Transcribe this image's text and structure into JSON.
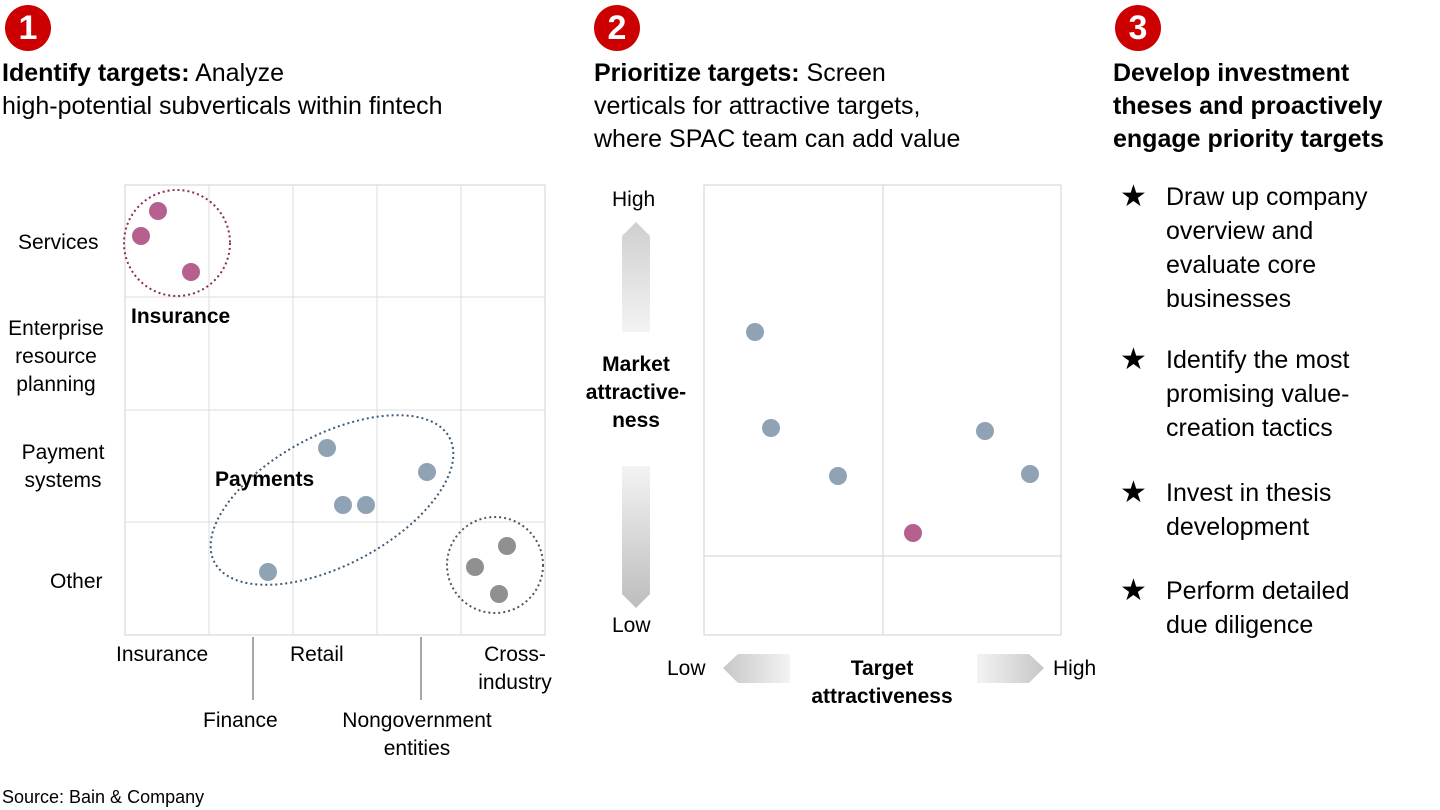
{
  "colors": {
    "accent_red": "#cc0000",
    "pink_dot": "#b5608e",
    "blue_dot": "#8fa3b5",
    "gray_dot": "#909090"
  },
  "step1": {
    "number": "1",
    "heading_bold": "Identify targets:",
    "heading_rest": " Analyze",
    "heading_line2": "high-potential subverticals within fintech",
    "row_labels": [
      "Services",
      "Enterprise",
      "resource",
      "planning",
      "Payment",
      "systems",
      "Other"
    ],
    "column_labels": [
      "Insurance",
      "Retail",
      "Cross-",
      "industry"
    ],
    "lower_column_labels": [
      "Finance",
      "Nongovernment",
      "entities"
    ],
    "cluster_labels": [
      "Insurance",
      "Payments"
    ]
  },
  "step2": {
    "number": "2",
    "heading_bold": "Prioritize targets:",
    "heading_rest": " Screen",
    "heading_line2": "verticals for attractive targets,",
    "heading_line3": "where SPAC team can add value",
    "y_high": "High",
    "y_low": "Low",
    "y_axis_label": [
      "Market",
      "attractive-",
      "ness"
    ],
    "x_low": "Low",
    "x_high": "High",
    "x_axis_label": [
      "Target",
      "attractiveness"
    ]
  },
  "step3": {
    "number": "3",
    "heading_lines": [
      "Develop investment",
      "theses and proactively",
      "engage priority targets"
    ],
    "bullets": [
      [
        "Draw up company",
        "overview and",
        "evaluate core",
        "businesses"
      ],
      [
        "Identify the most",
        "promising value-",
        "creation tactics"
      ],
      [
        "Invest in thesis",
        "development"
      ],
      [
        "Perform detailed",
        "due diligence"
      ]
    ]
  },
  "source": "Source: Bain & Company"
}
